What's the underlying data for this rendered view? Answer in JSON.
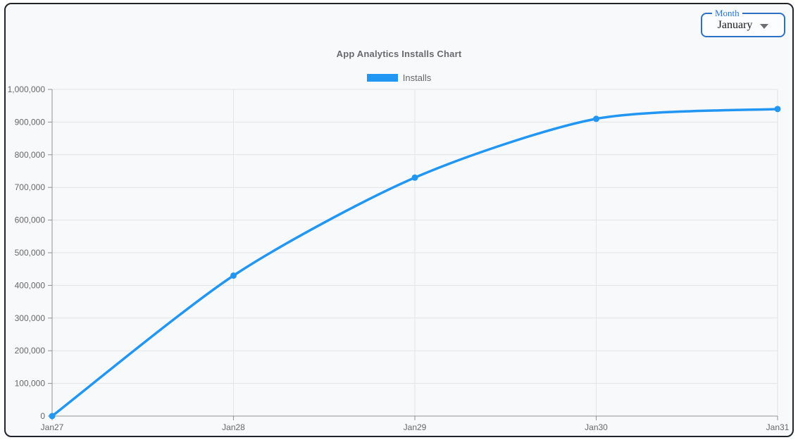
{
  "window": {
    "border_color": "#212529",
    "background": "#f8f9fa"
  },
  "month_filter": {
    "label": "Month",
    "selected": "January",
    "accent_color": "#2b72c7"
  },
  "chart_data": {
    "type": "line",
    "title": "App Analytics Installs Chart",
    "categories": [
      "Jan27",
      "Jan28",
      "Jan29",
      "Jan30",
      "Jan31"
    ],
    "series": [
      {
        "name": "Installs",
        "color": "#2196f3",
        "values": [
          0,
          430000,
          730000,
          910000,
          940000
        ]
      }
    ],
    "xlabel": "",
    "ylabel": "",
    "ylim": [
      0,
      1000000
    ],
    "ytick_step": 100000,
    "ytick_format": "comma",
    "grid": true,
    "legend_position": "top"
  }
}
